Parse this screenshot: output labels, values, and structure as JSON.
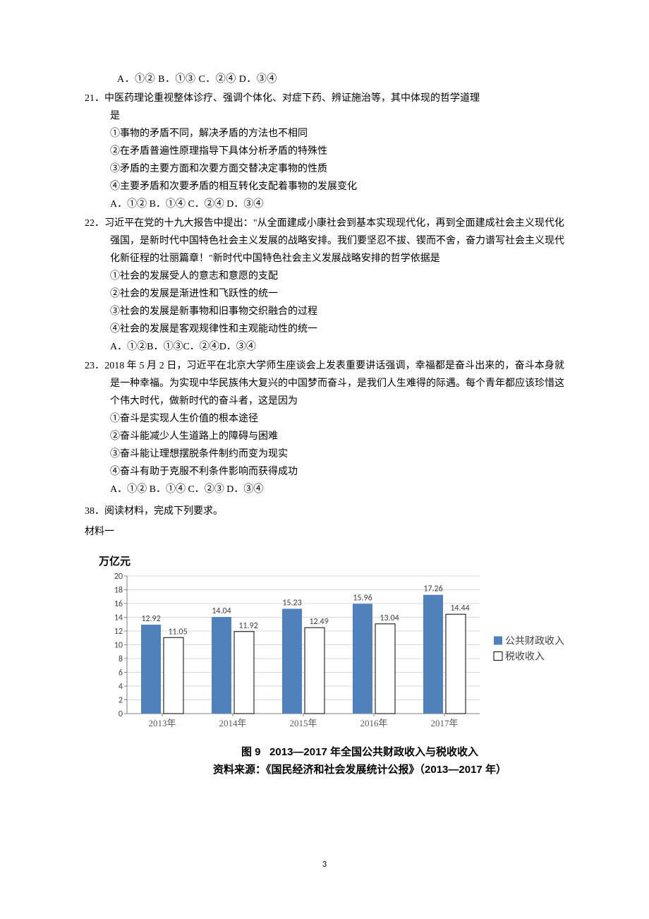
{
  "options_prev": "A．①②    B．①③   C．②④    D．③④",
  "q21": {
    "num": "21．",
    "stem": "中医药理论重视整体诊疗、强调个体化、对症下药、辨证施治等，其中体现的哲学道理是",
    "stem_tail": "是",
    "l1": "①事物的矛盾不同，解决矛盾的方法也不相同",
    "l2": "②在矛盾普遍性原理指导下具体分析矛盾的特殊性",
    "l3": "③矛盾的主要方面和次要方面交替决定事物的性质",
    "l4": " ④主要矛盾和次要矛盾的相互转化支配着事物的发展变化",
    "opts": "A．①② B．①④    C．②④   D．③④"
  },
  "q22": {
    "num": "22．",
    "stem1": "习近平在党的十九大报告中提出：\"从全面建成小康社会到基本实现现代化，再到全面建成社会主义现代化强国，是新时代中国特色社会主义发展的战略安排。我们要坚忍不拔、锲而不舍，奋力谱写社会主义现代化新征程的壮丽篇章！\"新时代中国特色社会主义发展战略安排的哲学依据是",
    "l1": "①社会的发展受人的意志和意愿的支配",
    "l2": "②社会的发展是渐进性和飞跃性的统一",
    "l3": "③社会的发展是新事物和旧事物交织融合的过程",
    "l4": "④社会的发展是客观规律性和主观能动性的统一",
    "opts": "A．①②B．①③C．②④D．③④"
  },
  "q23": {
    "num": "23．",
    "stem1": "2018 年 5 月 2 日，习近平在北京大学师生座谈会上发表重要讲话强调，幸福都是奋斗出来的，奋斗本身就是一种幸福。为实现中华民族伟大复兴的中国梦而奋斗，是我们人生难得的际遇。每个青年都应该珍惜这个伟大时代，做新时代的奋斗者，这是因为",
    "l1": "①奋斗是实现人生价值的根本途径",
    "l2": "②奋斗能减少人生道路上的障碍与困难",
    "l3": "③奋斗能让理想摆脱条件制约而变为现实",
    "l4": "④奋斗有助于克服不利条件影响而获得成功",
    "opts": "A．①②    B．①④    C．②③    D．③④"
  },
  "q38": {
    "num": "38．",
    "stem": "阅读材料，完成下列要求。"
  },
  "material_label": "材料一",
  "chart": {
    "type": "bar",
    "y_axis_title": "万亿元",
    "categories": [
      "2013年",
      "2014年",
      "2015年",
      "2016年",
      "2017年"
    ],
    "series1_name": "公共财政收入",
    "series2_name": "税收收入",
    "series1": [
      12.92,
      14.04,
      15.23,
      15.96,
      17.26
    ],
    "series2": [
      11.05,
      11.92,
      12.49,
      13.04,
      14.44
    ],
    "labels1": [
      "12.92",
      "14.04",
      "15.23",
      "15.96",
      "17.26"
    ],
    "labels2": [
      "11.05",
      "11.92",
      "12.49",
      "13.04",
      "14.44"
    ],
    "ymax": 20,
    "ystep": 2,
    "bar_color1": "#4f81bd",
    "bar_color2": "#ffffff",
    "bar_border2": "#000000",
    "grid_color": "#d9d9d9",
    "axis_color": "#808080",
    "legend_marker1": "■",
    "legend_marker2": "□",
    "caption1_prefix": "图 9",
    "caption1_rest": "2013—2017 年全国公共财政收入与税收收入",
    "caption2": "资料来源：《国民经济和社会发展统计公报》（2013—2017 年）",
    "y_ticks": [
      "0",
      "2",
      "4",
      "6",
      "8",
      "10",
      "12",
      "14",
      "16",
      "18",
      "20"
    ]
  },
  "page_number": "3"
}
